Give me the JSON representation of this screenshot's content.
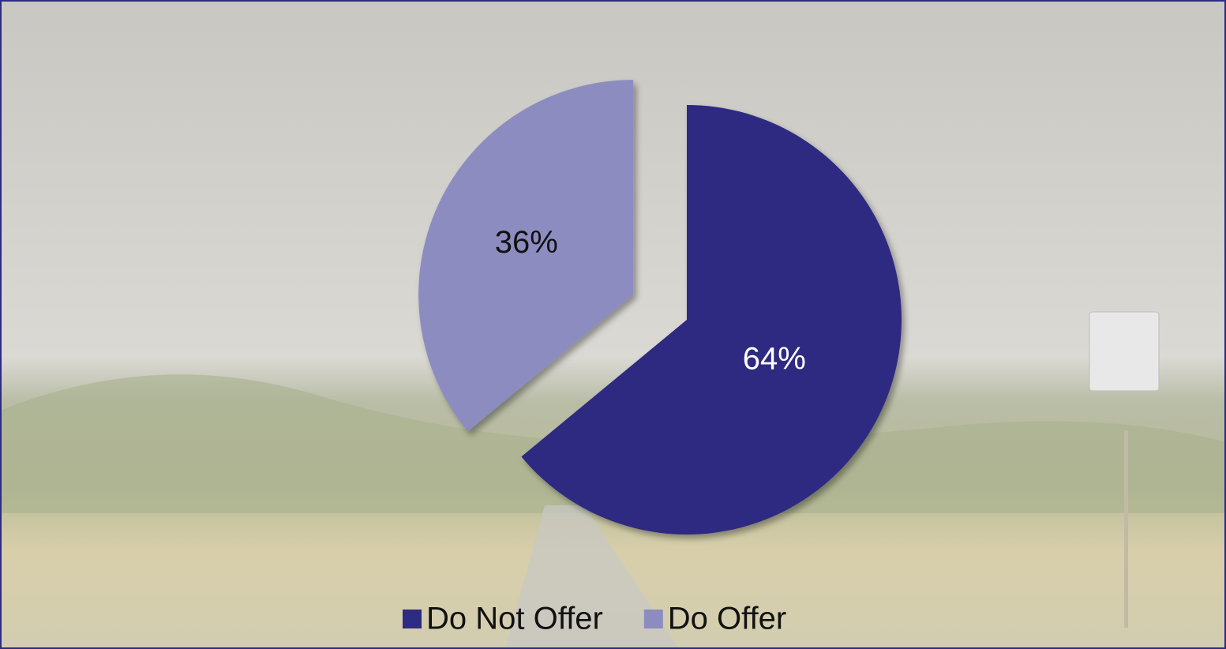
{
  "chart_data": {
    "type": "pie",
    "categories": [
      "Do Not Offer",
      "Do Offer"
    ],
    "values": [
      64,
      36
    ],
    "value_labels": [
      "64%",
      "36%"
    ],
    "colors": [
      "#2e2b82",
      "#8d8cc0"
    ],
    "exploded": [
      false,
      true
    ],
    "legend": "bottom"
  }
}
